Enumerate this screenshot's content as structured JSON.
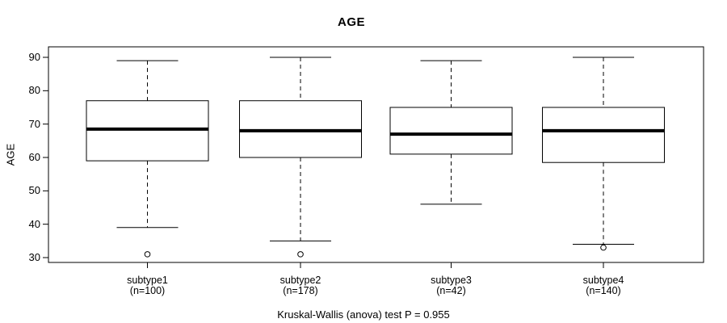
{
  "chart_data": {
    "type": "boxplot",
    "title": "AGE",
    "ylabel": "AGE",
    "caption": "Kruskal-Wallis (anova) test P = 0.955",
    "ylim": [
      30,
      90
    ],
    "yticks": [
      30,
      40,
      50,
      60,
      70,
      80,
      90
    ],
    "grid": false,
    "whisker_style": "dashed",
    "groups": [
      {
        "label": "subtype1",
        "n_label": "(n=100)",
        "whisker_low": 39,
        "q1": 59,
        "median": 68.5,
        "q3": 77,
        "whisker_high": 89,
        "outliers": [
          31
        ]
      },
      {
        "label": "subtype2",
        "n_label": "(n=178)",
        "whisker_low": 35,
        "q1": 60,
        "median": 68,
        "q3": 77,
        "whisker_high": 90,
        "outliers": [
          31
        ]
      },
      {
        "label": "subtype3",
        "n_label": "(n=42)",
        "whisker_low": 46,
        "q1": 61,
        "median": 67,
        "q3": 75,
        "whisker_high": 89,
        "outliers": []
      },
      {
        "label": "subtype4",
        "n_label": "(n=140)",
        "whisker_low": 34,
        "q1": 58.5,
        "median": 68,
        "q3": 75,
        "whisker_high": 90,
        "outliers": [
          33
        ]
      }
    ],
    "colors": {
      "line": "#000000",
      "box_fill": "#ffffff",
      "background": "#ffffff"
    }
  }
}
